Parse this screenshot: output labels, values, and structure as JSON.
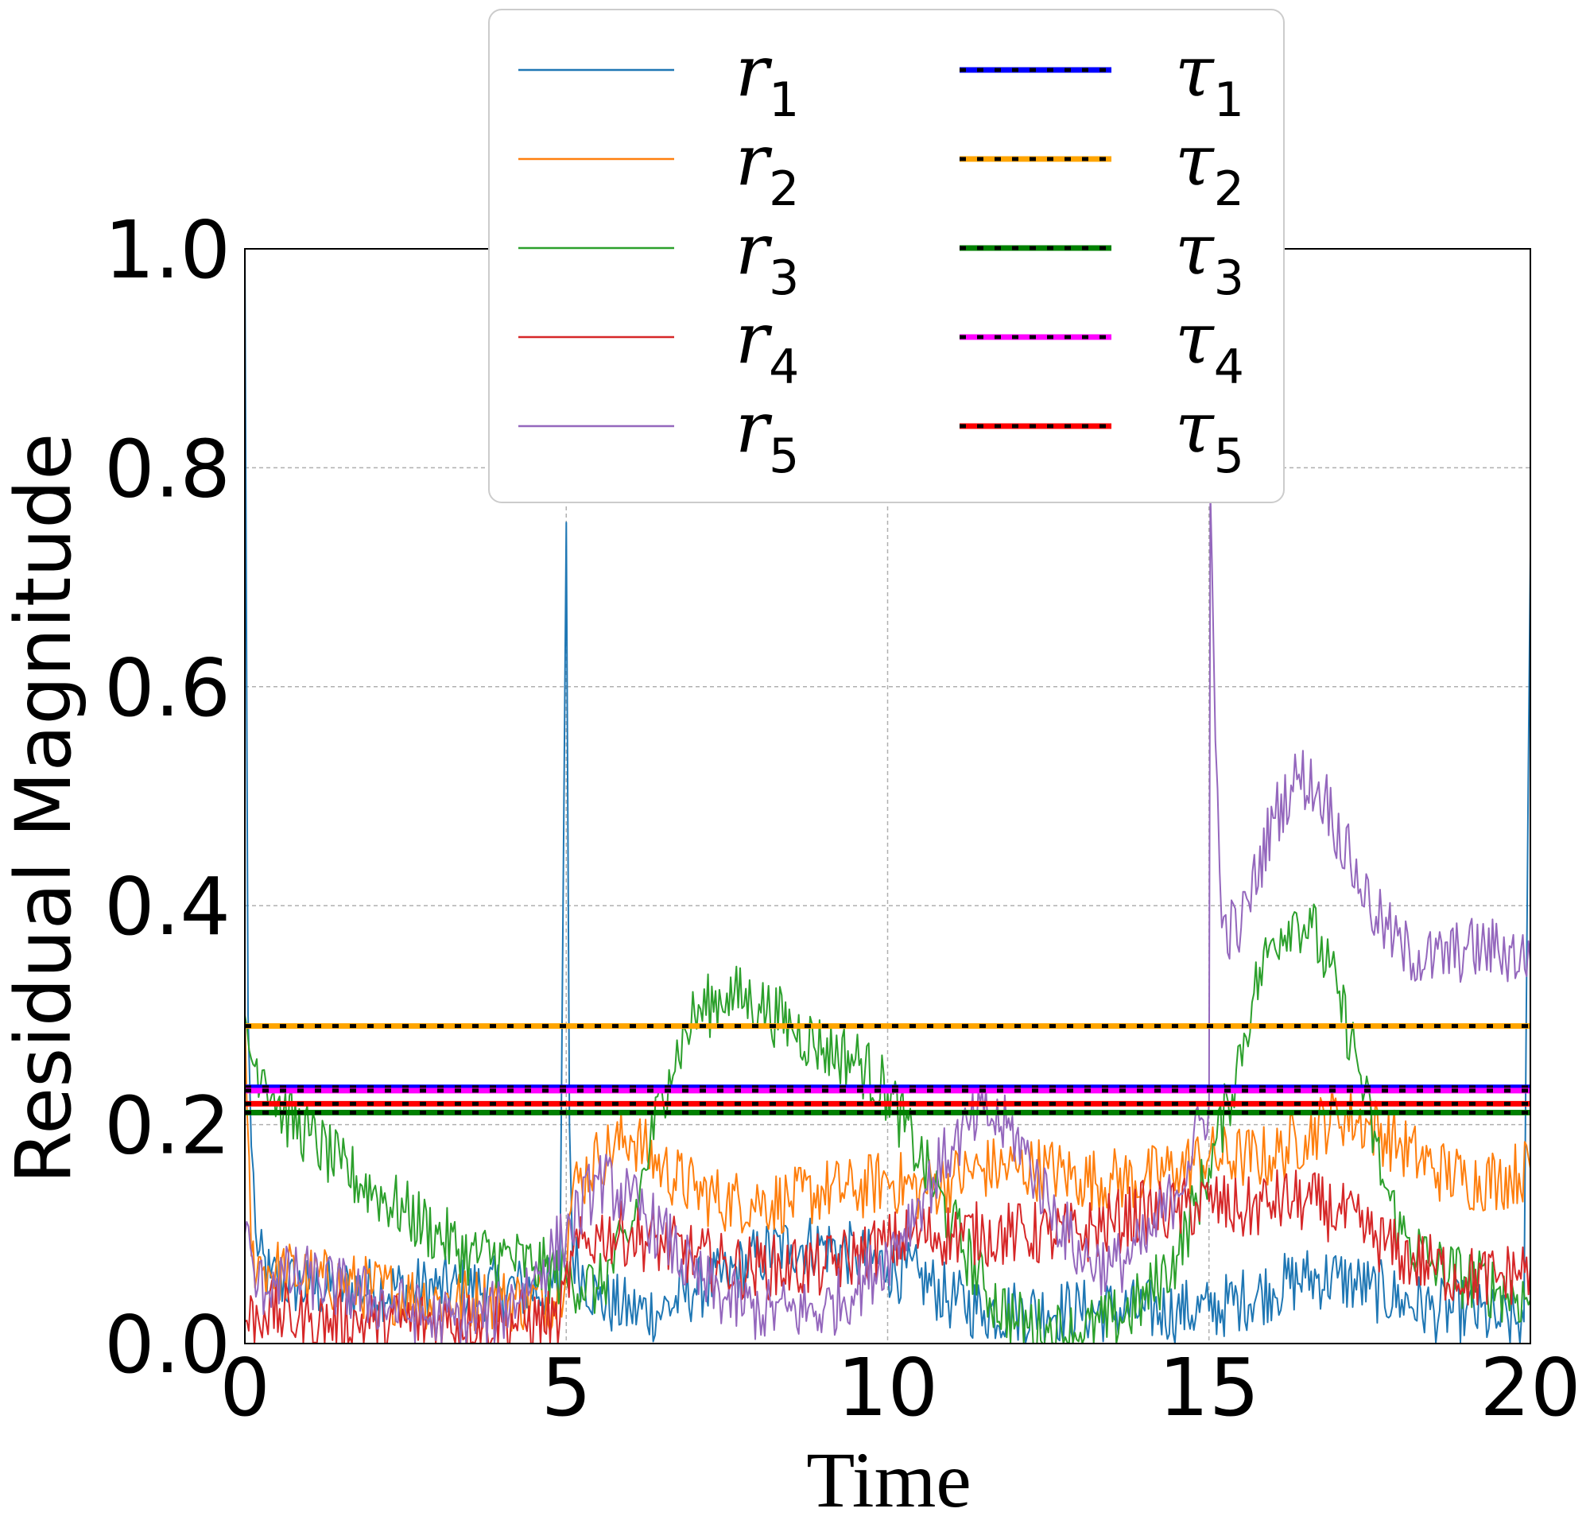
{
  "chart_data": {
    "type": "line",
    "title": "",
    "xlabel": "Time",
    "ylabel": "Residual Magnitude",
    "xlim": [
      0,
      20
    ],
    "ylim": [
      0,
      1.0
    ],
    "xticks": [
      0,
      5,
      10,
      15,
      20
    ],
    "xtick_labels": [
      "0",
      "5",
      "10",
      "15",
      "20"
    ],
    "yticks": [
      0.0,
      0.2,
      0.4,
      0.6,
      0.8,
      1.0
    ],
    "ytick_labels": [
      "0.0",
      "0.2",
      "0.4",
      "0.6",
      "0.8",
      "1.0"
    ],
    "grid": true,
    "legend_position": "top-center",
    "series": [
      {
        "name": "r1",
        "label_base": "r",
        "label_sub": "1",
        "color": "#1f77b4",
        "points": [
          [
            0,
            1.0
          ],
          [
            0.05,
            0.3
          ],
          [
            0.1,
            0.18
          ],
          [
            0.2,
            0.08
          ],
          [
            0.4,
            0.06
          ],
          [
            1,
            0.05
          ],
          [
            2,
            0.05
          ],
          [
            3,
            0.05
          ],
          [
            4,
            0.05
          ],
          [
            4.9,
            0.05
          ],
          [
            5.0,
            0.75
          ],
          [
            5.05,
            0.2
          ],
          [
            5.1,
            0.08
          ],
          [
            5.5,
            0.04
          ],
          [
            6,
            0.03
          ],
          [
            6.5,
            0.03
          ],
          [
            7,
            0.05
          ],
          [
            7.5,
            0.06
          ],
          [
            8,
            0.08
          ],
          [
            8.5,
            0.09
          ],
          [
            9,
            0.09
          ],
          [
            9.5,
            0.08
          ],
          [
            10,
            0.07
          ],
          [
            10.5,
            0.06
          ],
          [
            11,
            0.04
          ],
          [
            11.5,
            0.03
          ],
          [
            12,
            0.03
          ],
          [
            12.5,
            0.03
          ],
          [
            13,
            0.03
          ],
          [
            13.5,
            0.03
          ],
          [
            14,
            0.03
          ],
          [
            14.5,
            0.03
          ],
          [
            15,
            0.03
          ],
          [
            15.5,
            0.04
          ],
          [
            16,
            0.05
          ],
          [
            16.5,
            0.06
          ],
          [
            17,
            0.06
          ],
          [
            17.5,
            0.05
          ],
          [
            18,
            0.04
          ],
          [
            18.5,
            0.03
          ],
          [
            19,
            0.03
          ],
          [
            19.5,
            0.02
          ],
          [
            19.9,
            0.02
          ],
          [
            20,
            0.72
          ]
        ]
      },
      {
        "name": "r2",
        "label_base": "r",
        "label_sub": "2",
        "color": "#ff7f0e",
        "points": [
          [
            0,
            0.3
          ],
          [
            0.1,
            0.08
          ],
          [
            0.3,
            0.07
          ],
          [
            1,
            0.06
          ],
          [
            2,
            0.05
          ],
          [
            3,
            0.04
          ],
          [
            4,
            0.04
          ],
          [
            4.9,
            0.04
          ],
          [
            5.1,
            0.14
          ],
          [
            5.5,
            0.17
          ],
          [
            6,
            0.19
          ],
          [
            6.5,
            0.16
          ],
          [
            7,
            0.14
          ],
          [
            7.5,
            0.13
          ],
          [
            8,
            0.13
          ],
          [
            8.5,
            0.13
          ],
          [
            9,
            0.14
          ],
          [
            9.5,
            0.14
          ],
          [
            10,
            0.15
          ],
          [
            10.5,
            0.14
          ],
          [
            11,
            0.15
          ],
          [
            11.5,
            0.16
          ],
          [
            12,
            0.16
          ],
          [
            12.5,
            0.16
          ],
          [
            13,
            0.15
          ],
          [
            13.5,
            0.15
          ],
          [
            14,
            0.15
          ],
          [
            14.5,
            0.16
          ],
          [
            15,
            0.17
          ],
          [
            15.5,
            0.17
          ],
          [
            16,
            0.17
          ],
          [
            16.5,
            0.19
          ],
          [
            17,
            0.21
          ],
          [
            17.5,
            0.2
          ],
          [
            18,
            0.18
          ],
          [
            18.5,
            0.16
          ],
          [
            19,
            0.15
          ],
          [
            19.5,
            0.15
          ],
          [
            20,
            0.16
          ]
        ]
      },
      {
        "name": "r3",
        "label_base": "r",
        "label_sub": "3",
        "color": "#2ca02c",
        "points": [
          [
            0,
            0.3
          ],
          [
            0.1,
            0.26
          ],
          [
            0.3,
            0.25
          ],
          [
            0.6,
            0.21
          ],
          [
            1,
            0.19
          ],
          [
            1.5,
            0.16
          ],
          [
            2,
            0.14
          ],
          [
            2.5,
            0.12
          ],
          [
            3,
            0.1
          ],
          [
            3.5,
            0.08
          ],
          [
            4,
            0.08
          ],
          [
            4.5,
            0.07
          ],
          [
            5,
            0.06
          ],
          [
            5.5,
            0.05
          ],
          [
            6,
            0.1
          ],
          [
            6.3,
            0.18
          ],
          [
            6.6,
            0.25
          ],
          [
            7,
            0.3
          ],
          [
            7.5,
            0.32
          ],
          [
            8,
            0.31
          ],
          [
            8.5,
            0.29
          ],
          [
            9,
            0.27
          ],
          [
            9.5,
            0.26
          ],
          [
            10,
            0.23
          ],
          [
            10.5,
            0.17
          ],
          [
            11,
            0.11
          ],
          [
            11.5,
            0.05
          ],
          [
            12,
            0.02
          ],
          [
            12.5,
            0.01
          ],
          [
            13,
            0.01
          ],
          [
            13.5,
            0.02
          ],
          [
            14,
            0.04
          ],
          [
            14.5,
            0.08
          ],
          [
            15,
            0.16
          ],
          [
            15.3,
            0.22
          ],
          [
            15.7,
            0.32
          ],
          [
            16,
            0.37
          ],
          [
            16.3,
            0.39
          ],
          [
            16.6,
            0.38
          ],
          [
            17,
            0.32
          ],
          [
            17.3,
            0.26
          ],
          [
            17.7,
            0.15
          ],
          [
            18,
            0.1
          ],
          [
            18.5,
            0.07
          ],
          [
            19,
            0.06
          ],
          [
            19.5,
            0.05
          ],
          [
            20,
            0.04
          ]
        ]
      },
      {
        "name": "r4",
        "label_base": "r",
        "label_sub": "4",
        "color": "#d62728",
        "points": [
          [
            0,
            0.02
          ],
          [
            0.3,
            0.03
          ],
          [
            1,
            0.02
          ],
          [
            2,
            0.02
          ],
          [
            3,
            0.02
          ],
          [
            4,
            0.02
          ],
          [
            4.9,
            0.02
          ],
          [
            5.1,
            0.08
          ],
          [
            5.5,
            0.1
          ],
          [
            6,
            0.1
          ],
          [
            6.5,
            0.09
          ],
          [
            7,
            0.08
          ],
          [
            7.5,
            0.07
          ],
          [
            8,
            0.07
          ],
          [
            8.5,
            0.07
          ],
          [
            9,
            0.07
          ],
          [
            9.5,
            0.08
          ],
          [
            10,
            0.09
          ],
          [
            10.5,
            0.1
          ],
          [
            11,
            0.1
          ],
          [
            11.5,
            0.1
          ],
          [
            12,
            0.1
          ],
          [
            12.5,
            0.1
          ],
          [
            13,
            0.1
          ],
          [
            13.5,
            0.11
          ],
          [
            14,
            0.12
          ],
          [
            14.5,
            0.12
          ],
          [
            15,
            0.13
          ],
          [
            15.5,
            0.12
          ],
          [
            16,
            0.13
          ],
          [
            16.5,
            0.13
          ],
          [
            17,
            0.12
          ],
          [
            17.5,
            0.1
          ],
          [
            18,
            0.08
          ],
          [
            18.5,
            0.07
          ],
          [
            19,
            0.06
          ],
          [
            19.5,
            0.06
          ],
          [
            20,
            0.07
          ]
        ]
      },
      {
        "name": "r5",
        "label_base": "r",
        "label_sub": "5",
        "color": "#9467bd",
        "points": [
          [
            0,
            0.1
          ],
          [
            0.2,
            0.05
          ],
          [
            0.5,
            0.06
          ],
          [
            1,
            0.06
          ],
          [
            1.5,
            0.05
          ],
          [
            2,
            0.04
          ],
          [
            2.5,
            0.03
          ],
          [
            3,
            0.02
          ],
          [
            3.5,
            0.02
          ],
          [
            4,
            0.03
          ],
          [
            4.5,
            0.06
          ],
          [
            5,
            0.1
          ],
          [
            5.5,
            0.15
          ],
          [
            6,
            0.13
          ],
          [
            6.5,
            0.1
          ],
          [
            7,
            0.06
          ],
          [
            7.5,
            0.04
          ],
          [
            8,
            0.03
          ],
          [
            8.5,
            0.03
          ],
          [
            9,
            0.03
          ],
          [
            9.5,
            0.05
          ],
          [
            10,
            0.08
          ],
          [
            10.5,
            0.13
          ],
          [
            11,
            0.18
          ],
          [
            11.5,
            0.21
          ],
          [
            12,
            0.19
          ],
          [
            12.5,
            0.13
          ],
          [
            13,
            0.08
          ],
          [
            13.5,
            0.07
          ],
          [
            14,
            0.09
          ],
          [
            14.5,
            0.14
          ],
          [
            15,
            0.22
          ],
          [
            15.02,
            0.78
          ],
          [
            15.1,
            0.55
          ],
          [
            15.2,
            0.38
          ],
          [
            15.5,
            0.38
          ],
          [
            16,
            0.48
          ],
          [
            16.4,
            0.52
          ],
          [
            16.8,
            0.5
          ],
          [
            17.2,
            0.44
          ],
          [
            17.6,
            0.39
          ],
          [
            18,
            0.36
          ],
          [
            18.5,
            0.35
          ],
          [
            19,
            0.36
          ],
          [
            19.5,
            0.36
          ],
          [
            20,
            0.35
          ]
        ]
      }
    ],
    "thresholds": [
      {
        "name": "tau1",
        "label_base": "τ",
        "label_sub": "1",
        "color": "#0000ff",
        "value": 0.234
      },
      {
        "name": "tau2",
        "label_base": "τ",
        "label_sub": "2",
        "color": "#ffa500",
        "value": 0.29
      },
      {
        "name": "tau3",
        "label_base": "τ",
        "label_sub": "3",
        "color": "#008000",
        "value": 0.211
      },
      {
        "name": "tau4",
        "label_base": "τ",
        "label_sub": "4",
        "color": "#ff00ff",
        "value": 0.231
      },
      {
        "name": "tau5",
        "label_base": "τ",
        "label_sub": "5",
        "color": "#ff0000",
        "value": 0.219
      }
    ]
  }
}
